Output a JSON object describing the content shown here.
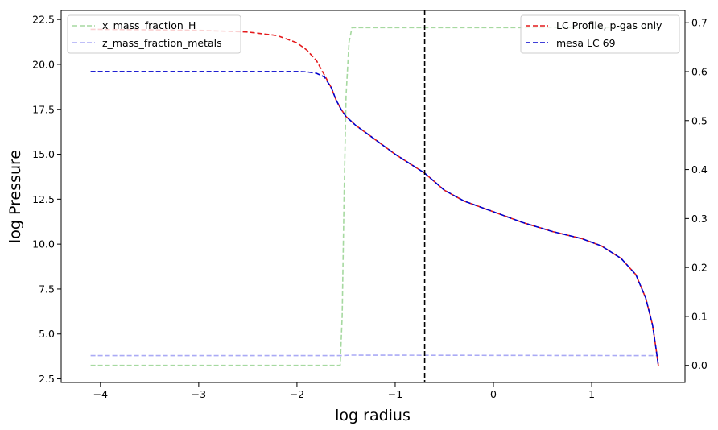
{
  "chart_data": {
    "type": "line",
    "xlabel": "log radius",
    "ylabel": "log Pressure",
    "xlim": [
      -4.4,
      1.95
    ],
    "ylim": [
      2.3,
      23.0
    ],
    "y2lim": [
      -0.035,
      0.725
    ],
    "xticks": [
      "−4",
      "−3",
      "−2",
      "−1",
      "0",
      "1"
    ],
    "yticks": [
      "2.5",
      "5.0",
      "7.5",
      "10.0",
      "12.5",
      "15.0",
      "17.5",
      "20.0",
      "22.5"
    ],
    "y2ticks": [
      "0.0",
      "0.1",
      "0.2",
      "0.3",
      "0.4",
      "0.5",
      "0.6",
      "0.7"
    ],
    "grid": false,
    "vline": {
      "x": -0.7,
      "color": "#000000"
    },
    "legend_left": {
      "placement": "top-left",
      "entries": [
        "x_mass_fraction_H",
        "z_mass_fraction_metals"
      ]
    },
    "legend_right": {
      "placement": "top-right",
      "entries": [
        "LC Profile, p-gas only",
        "mesa LC 69"
      ]
    },
    "series": [
      {
        "name": "LC Profile, p-gas only",
        "axis": "left",
        "color": "#e41a1c",
        "points": [
          [
            -4.1,
            21.95
          ],
          [
            -3.0,
            21.9
          ],
          [
            -2.5,
            21.8
          ],
          [
            -2.2,
            21.6
          ],
          [
            -2.0,
            21.2
          ],
          [
            -1.9,
            20.8
          ],
          [
            -1.8,
            20.2
          ],
          [
            -1.7,
            19.2
          ],
          [
            -1.65,
            18.7
          ],
          [
            -1.6,
            18.0
          ],
          [
            -1.55,
            17.5
          ],
          [
            -1.5,
            17.1
          ],
          [
            -1.4,
            16.6
          ],
          [
            -1.2,
            15.8
          ],
          [
            -1.0,
            15.0
          ],
          [
            -0.8,
            14.3
          ],
          [
            -0.7,
            13.95
          ],
          [
            -0.5,
            13.0
          ],
          [
            -0.3,
            12.4
          ],
          [
            0.0,
            11.8
          ],
          [
            0.3,
            11.2
          ],
          [
            0.6,
            10.7
          ],
          [
            0.9,
            10.3
          ],
          [
            1.1,
            9.9
          ],
          [
            1.3,
            9.2
          ],
          [
            1.45,
            8.3
          ],
          [
            1.55,
            7.0
          ],
          [
            1.62,
            5.5
          ],
          [
            1.66,
            4.0
          ],
          [
            1.68,
            3.2
          ]
        ]
      },
      {
        "name": "mesa LC 69",
        "axis": "left",
        "color": "#0000cc",
        "points": [
          [
            -4.1,
            19.6
          ],
          [
            -3.0,
            19.6
          ],
          [
            -2.0,
            19.6
          ],
          [
            -1.9,
            19.58
          ],
          [
            -1.8,
            19.5
          ],
          [
            -1.72,
            19.3
          ],
          [
            -1.65,
            18.7
          ],
          [
            -1.6,
            18.0
          ],
          [
            -1.55,
            17.5
          ],
          [
            -1.5,
            17.1
          ],
          [
            -1.4,
            16.6
          ],
          [
            -1.2,
            15.8
          ],
          [
            -1.0,
            15.0
          ],
          [
            -0.8,
            14.3
          ],
          [
            -0.7,
            13.95
          ],
          [
            -0.5,
            13.0
          ],
          [
            -0.3,
            12.4
          ],
          [
            0.0,
            11.8
          ],
          [
            0.3,
            11.2
          ],
          [
            0.6,
            10.7
          ],
          [
            0.9,
            10.3
          ],
          [
            1.1,
            9.9
          ],
          [
            1.3,
            9.2
          ],
          [
            1.45,
            8.3
          ],
          [
            1.55,
            7.0
          ],
          [
            1.62,
            5.5
          ],
          [
            1.66,
            4.0
          ],
          [
            1.68,
            3.2
          ]
        ]
      },
      {
        "name": "x_mass_fraction_H",
        "axis": "right",
        "color": "#a6d9a0",
        "points": [
          [
            -4.1,
            0.0
          ],
          [
            -1.56,
            0.0
          ],
          [
            -1.54,
            0.1
          ],
          [
            -1.52,
            0.35
          ],
          [
            -1.5,
            0.55
          ],
          [
            -1.47,
            0.66
          ],
          [
            -1.44,
            0.69
          ],
          [
            -1.4,
            0.69
          ],
          [
            1.68,
            0.69
          ]
        ]
      },
      {
        "name": "z_mass_fraction_metals",
        "axis": "right",
        "color": "#aaaaf5",
        "points": [
          [
            -4.1,
            0.02
          ],
          [
            -1.55,
            0.02
          ],
          [
            -1.45,
            0.021
          ],
          [
            1.68,
            0.02
          ]
        ]
      }
    ]
  }
}
